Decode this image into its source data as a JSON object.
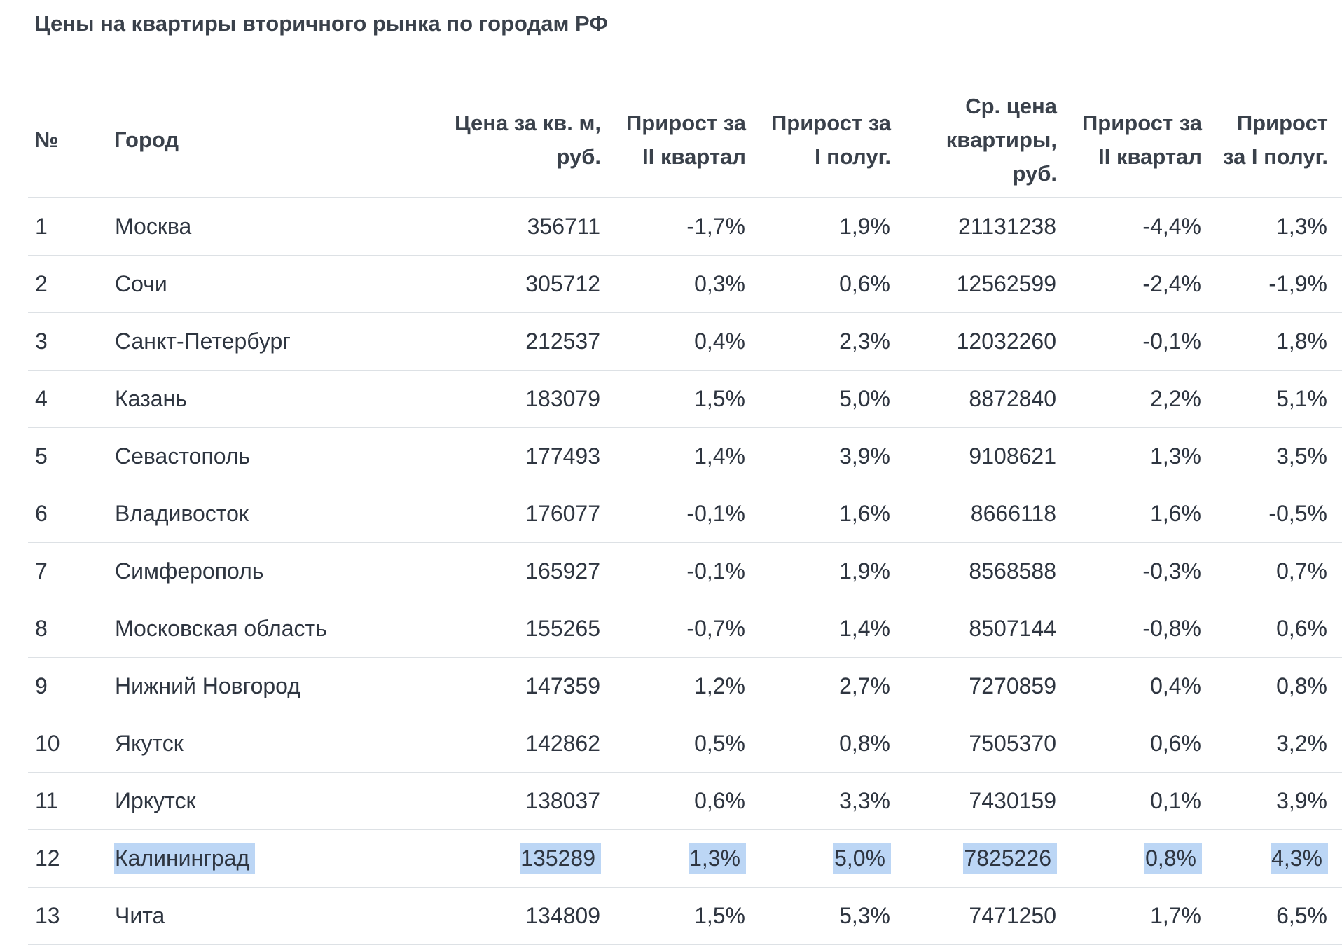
{
  "title": "Цены на квартиры вторичного рынка по городам РФ",
  "table": {
    "headers": [
      "№",
      "Город",
      "Цена за кв. м, руб.",
      "Прирост за II квартал",
      "Прирост за I полуг.",
      "Ср. цена квартиры, руб.",
      "Прирост за II квартал",
      "Прирост за I полуг."
    ],
    "rows": [
      [
        "1",
        "Москва",
        "356711",
        "-1,7%",
        "1,9%",
        "21131238",
        "-4,4%",
        "1,3%"
      ],
      [
        "2",
        "Сочи",
        "305712",
        "0,3%",
        "0,6%",
        "12562599",
        "-2,4%",
        "-1,9%"
      ],
      [
        "3",
        "Санкт-Петербург",
        "212537",
        "0,4%",
        "2,3%",
        "12032260",
        "-0,1%",
        "1,8%"
      ],
      [
        "4",
        "Казань",
        "183079",
        "1,5%",
        "5,0%",
        "8872840",
        "2,2%",
        "5,1%"
      ],
      [
        "5",
        "Севастополь",
        "177493",
        "1,4%",
        "3,9%",
        "9108621",
        "1,3%",
        "3,5%"
      ],
      [
        "6",
        "Владивосток",
        "176077",
        "-0,1%",
        "1,6%",
        "8666118",
        "1,6%",
        "-0,5%"
      ],
      [
        "7",
        "Симферополь",
        "165927",
        "-0,1%",
        "1,9%",
        "8568588",
        "-0,3%",
        "0,7%"
      ],
      [
        "8",
        "Московская область",
        "155265",
        "-0,7%",
        "1,4%",
        "8507144",
        "-0,8%",
        "0,6%"
      ],
      [
        "9",
        "Нижний Новгород",
        "147359",
        "1,2%",
        "2,7%",
        "7270859",
        "0,4%",
        "0,8%"
      ],
      [
        "10",
        "Якутск",
        "142862",
        "0,5%",
        "0,8%",
        "7505370",
        "0,6%",
        "3,2%"
      ],
      [
        "11",
        "Иркутск",
        "138037",
        "0,6%",
        "3,3%",
        "7430159",
        "0,1%",
        "3,9%"
      ],
      [
        "12",
        "Калининград",
        "135289",
        "1,3%",
        "5,0%",
        "7825226",
        "0,8%",
        "4,3%"
      ],
      [
        "13",
        "Чита",
        "134809",
        "1,5%",
        "5,3%",
        "7471250",
        "1,7%",
        "6,5%"
      ]
    ],
    "selected_row": "12"
  },
  "colors": {
    "selection": "#bcd6f5",
    "text": "#2e3540",
    "divider": "#dde1e5"
  }
}
